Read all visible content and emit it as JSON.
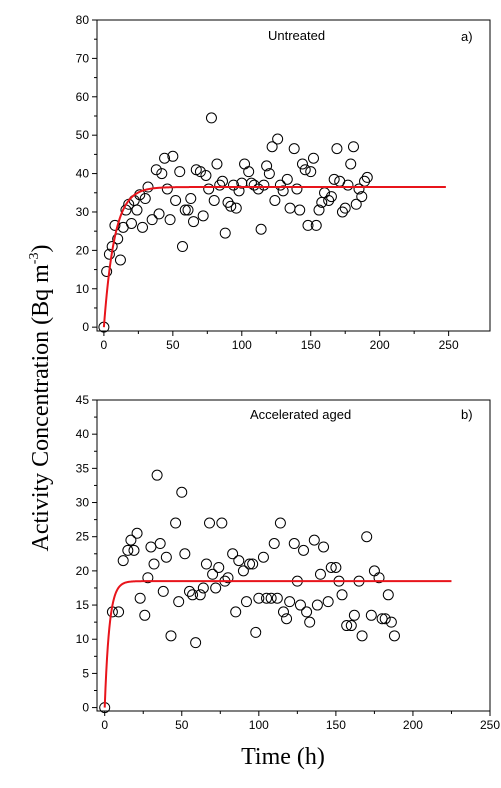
{
  "ylabel": "Activity Concentration (Bq m",
  "ylabel_sup": "-3",
  "ylabel_end": ")",
  "xlabel": "Time (h)",
  "chart_data": [
    {
      "type": "scatter",
      "panel_label": "a)",
      "title": "Untreated",
      "xlim": [
        -5,
        280
      ],
      "ylim": [
        -1,
        80
      ],
      "xticks": [
        0,
        50,
        100,
        150,
        200,
        250
      ],
      "yticks": [
        0,
        10,
        20,
        30,
        40,
        50,
        60,
        70,
        80
      ],
      "fit_color": "#e8141b",
      "fit": {
        "equilibrium": 36.5,
        "rate": 0.13,
        "x_end": 248
      },
      "points": [
        [
          0,
          0
        ],
        [
          2,
          14.5
        ],
        [
          4,
          19
        ],
        [
          6,
          21
        ],
        [
          8,
          26.5
        ],
        [
          10,
          23
        ],
        [
          12,
          17.5
        ],
        [
          14,
          26
        ],
        [
          16,
          30.5
        ],
        [
          18,
          32
        ],
        [
          20,
          27
        ],
        [
          22,
          33
        ],
        [
          24,
          30.5
        ],
        [
          26,
          34.5
        ],
        [
          28,
          26
        ],
        [
          30,
          33.5
        ],
        [
          32,
          36.5
        ],
        [
          35,
          28
        ],
        [
          38,
          41
        ],
        [
          40,
          29.5
        ],
        [
          42,
          40
        ],
        [
          44,
          44
        ],
        [
          46,
          36
        ],
        [
          48,
          28
        ],
        [
          50,
          44.5
        ],
        [
          52,
          33
        ],
        [
          55,
          40.5
        ],
        [
          57,
          21
        ],
        [
          59,
          30.5
        ],
        [
          61,
          30.5
        ],
        [
          63,
          33.5
        ],
        [
          65,
          27.5
        ],
        [
          67,
          41
        ],
        [
          70,
          40.5
        ],
        [
          72,
          29
        ],
        [
          74,
          39.5
        ],
        [
          76,
          36
        ],
        [
          78,
          54.5
        ],
        [
          80,
          33
        ],
        [
          82,
          42.5
        ],
        [
          84,
          37
        ],
        [
          86,
          38
        ],
        [
          88,
          24.5
        ],
        [
          90,
          32.5
        ],
        [
          92,
          31.5
        ],
        [
          94,
          37
        ],
        [
          96,
          31
        ],
        [
          98,
          35.5
        ],
        [
          100,
          37.5
        ],
        [
          102,
          42.5
        ],
        [
          105,
          40.5
        ],
        [
          107,
          37.5
        ],
        [
          109,
          37
        ],
        [
          112,
          36
        ],
        [
          114,
          25.5
        ],
        [
          116,
          37
        ],
        [
          118,
          42
        ],
        [
          120,
          40
        ],
        [
          122,
          47
        ],
        [
          124,
          33
        ],
        [
          126,
          49
        ],
        [
          128,
          37
        ],
        [
          130,
          35.5
        ],
        [
          133,
          38.5
        ],
        [
          135,
          31
        ],
        [
          138,
          46.5
        ],
        [
          140,
          36
        ],
        [
          142,
          30.5
        ],
        [
          144,
          42.5
        ],
        [
          146,
          41
        ],
        [
          148,
          26.5
        ],
        [
          150,
          40.5
        ],
        [
          152,
          44
        ],
        [
          154,
          26.5
        ],
        [
          156,
          30.5
        ],
        [
          158,
          32.5
        ],
        [
          160,
          35
        ],
        [
          163,
          33
        ],
        [
          165,
          34
        ],
        [
          167,
          38.5
        ],
        [
          169,
          46.5
        ],
        [
          171,
          38
        ],
        [
          173,
          30
        ],
        [
          175,
          31
        ],
        [
          177,
          37
        ],
        [
          179,
          42.5
        ],
        [
          181,
          47
        ],
        [
          183,
          32
        ],
        [
          185,
          36
        ],
        [
          187,
          34
        ],
        [
          189,
          38
        ],
        [
          191,
          39
        ]
      ]
    },
    {
      "type": "scatter",
      "panel_label": "b)",
      "title": "Accelerated aged",
      "xlim": [
        -5,
        250
      ],
      "ylim": [
        -0.5,
        45
      ],
      "xticks": [
        0,
        50,
        100,
        150,
        200,
        250
      ],
      "yticks": [
        0,
        5,
        10,
        15,
        20,
        25,
        30,
        35,
        40,
        45
      ],
      "fit_color": "#e8141b",
      "fit": {
        "equilibrium": 18.5,
        "rate": 0.33,
        "x_end": 225
      },
      "points": [
        [
          0,
          0
        ],
        [
          5,
          14
        ],
        [
          9,
          14
        ],
        [
          12,
          21.5
        ],
        [
          15,
          23
        ],
        [
          17,
          24.5
        ],
        [
          19,
          23
        ],
        [
          21,
          25.5
        ],
        [
          23,
          16
        ],
        [
          26,
          13.5
        ],
        [
          28,
          19
        ],
        [
          30,
          23.5
        ],
        [
          32,
          21
        ],
        [
          34,
          34
        ],
        [
          36,
          24
        ],
        [
          38,
          17
        ],
        [
          40,
          22
        ],
        [
          43,
          10.5
        ],
        [
          46,
          27
        ],
        [
          48,
          15.5
        ],
        [
          50,
          31.5
        ],
        [
          52,
          22.5
        ],
        [
          55,
          17
        ],
        [
          57,
          16.5
        ],
        [
          59,
          9.5
        ],
        [
          62,
          16.5
        ],
        [
          64,
          17.5
        ],
        [
          66,
          21
        ],
        [
          68,
          27
        ],
        [
          70,
          19.5
        ],
        [
          72,
          17.5
        ],
        [
          74,
          20.5
        ],
        [
          76,
          27
        ],
        [
          78,
          18.5
        ],
        [
          80,
          19
        ],
        [
          83,
          22.5
        ],
        [
          85,
          14
        ],
        [
          87,
          21.5
        ],
        [
          90,
          20
        ],
        [
          92,
          15.5
        ],
        [
          94,
          21
        ],
        [
          96,
          21
        ],
        [
          98,
          11
        ],
        [
          100,
          16
        ],
        [
          103,
          22
        ],
        [
          105,
          16
        ],
        [
          108,
          16
        ],
        [
          110,
          24
        ],
        [
          112,
          16
        ],
        [
          114,
          27
        ],
        [
          116,
          14
        ],
        [
          118,
          13
        ],
        [
          120,
          15.5
        ],
        [
          123,
          24
        ],
        [
          125,
          18.5
        ],
        [
          127,
          15
        ],
        [
          129,
          23
        ],
        [
          131,
          14
        ],
        [
          133,
          12.5
        ],
        [
          136,
          24.5
        ],
        [
          138,
          15
        ],
        [
          140,
          19.5
        ],
        [
          142,
          23.5
        ],
        [
          145,
          15.5
        ],
        [
          147,
          20.5
        ],
        [
          150,
          20.5
        ],
        [
          152,
          18.5
        ],
        [
          154,
          16.5
        ],
        [
          157,
          12
        ],
        [
          160,
          12
        ],
        [
          162,
          13.5
        ],
        [
          165,
          18.5
        ],
        [
          167,
          10.5
        ],
        [
          170,
          25
        ],
        [
          173,
          13.5
        ],
        [
          175,
          20
        ],
        [
          178,
          19
        ],
        [
          180,
          13
        ],
        [
          182,
          13
        ],
        [
          184,
          16.5
        ],
        [
          186,
          12.5
        ],
        [
          188,
          10.5
        ]
      ]
    }
  ]
}
